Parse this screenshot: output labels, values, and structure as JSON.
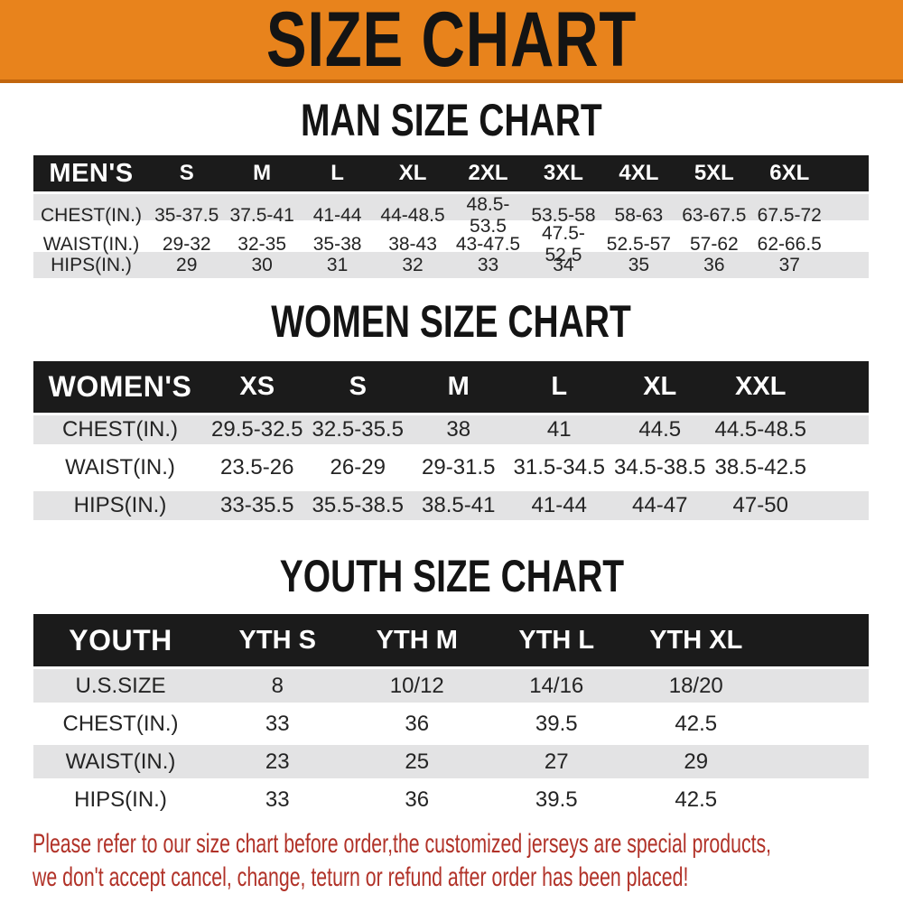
{
  "banner": {
    "title": "SIZE CHART"
  },
  "sections": [
    {
      "id": "men",
      "heading": "MAN SIZE CHART",
      "label": "MEN'S",
      "columns": [
        "S",
        "M",
        "L",
        "XL",
        "2XL",
        "3XL",
        "4XL",
        "5XL",
        "6XL"
      ],
      "rows": [
        {
          "label": "CHEST(IN.)",
          "values": [
            "35-37.5",
            "37.5-41",
            "41-44",
            "44-48.5",
            "48.5-53.5",
            "53.5-58",
            "58-63",
            "63-67.5",
            "67.5-72"
          ]
        },
        {
          "label": "WAIST(IN.)",
          "values": [
            "29-32",
            "32-35",
            "35-38",
            "38-43",
            "43-47.5",
            "47.5-52.5",
            "52.5-57",
            "57-62",
            "62-66.5"
          ]
        },
        {
          "label": "HIPS(IN.)",
          "values": [
            "29",
            "30",
            "31",
            "32",
            "33",
            "34",
            "35",
            "36",
            "37"
          ]
        }
      ]
    },
    {
      "id": "women",
      "heading": "WOMEN SIZE CHART",
      "label": "WOMEN'S",
      "columns": [
        "XS",
        "S",
        "M",
        "L",
        "XL",
        "XXL"
      ],
      "rows": [
        {
          "label": "CHEST(IN.)",
          "values": [
            "29.5-32.5",
            "32.5-35.5",
            "38",
            "41",
            "44.5",
            "44.5-48.5"
          ]
        },
        {
          "label": "WAIST(IN.)",
          "values": [
            "23.5-26",
            "26-29",
            "29-31.5",
            "31.5-34.5",
            "34.5-38.5",
            "38.5-42.5"
          ]
        },
        {
          "label": "HIPS(IN.)",
          "values": [
            "33-35.5",
            "35.5-38.5",
            "38.5-41",
            "41-44",
            "44-47",
            "47-50"
          ]
        }
      ]
    },
    {
      "id": "youth",
      "heading": "YOUTH SIZE CHART",
      "label": "YOUTH",
      "columns": [
        "YTH S",
        "YTH M",
        "YTH L",
        "YTH XL"
      ],
      "rows": [
        {
          "label": "U.S.SIZE",
          "values": [
            "8",
            "10/12",
            "14/16",
            "18/20"
          ]
        },
        {
          "label": "CHEST(IN.)",
          "values": [
            "33",
            "36",
            "39.5",
            "42.5"
          ]
        },
        {
          "label": "WAIST(IN.)",
          "values": [
            "23",
            "25",
            "27",
            "29"
          ]
        },
        {
          "label": "HIPS(IN.)",
          "values": [
            "33",
            "36",
            "39.5",
            "42.5"
          ]
        }
      ]
    }
  ],
  "footnote": {
    "line1": "Please refer to our size chart before order,the customized jerseys are special products,",
    "line2": "we don't accept cancel, change, teturn or refund after order has been placed!"
  },
  "colors": {
    "banner_bg": "#E8831C",
    "banner_border": "#C2660E",
    "table_header_bg": "#1B1B1B",
    "row_stripe_bg": "#E3E3E4",
    "footnote_text": "#B13228",
    "title_text": "#141414"
  }
}
